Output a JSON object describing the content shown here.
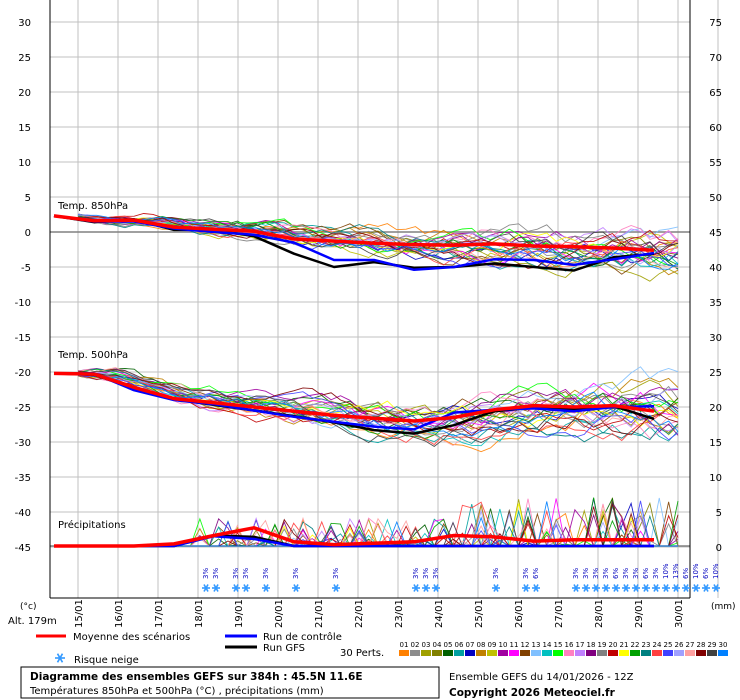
{
  "chart_data": {
    "type": "line",
    "x_dates": [
      "15/01",
      "16/01",
      "17/01",
      "18/01",
      "19/01",
      "20/01",
      "21/01",
      "22/01",
      "23/01",
      "24/01",
      "25/01",
      "26/01",
      "27/01",
      "28/01",
      "29/01",
      "30/01"
    ],
    "left_axis": {
      "unit": "(°c)",
      "ticks": [
        30,
        25,
        20,
        15,
        10,
        5,
        0,
        -5,
        -10,
        -15,
        -20,
        -25,
        -30,
        -35,
        -40,
        -45
      ]
    },
    "right_axis": {
      "unit": "(mm)",
      "ticks": [
        75,
        70,
        65,
        60,
        55,
        50,
        45,
        40,
        35,
        30,
        25,
        20,
        15,
        10,
        5,
        0
      ]
    },
    "panel_labels": {
      "t850": "Temp. 850hPa",
      "t500": "Temp. 500hPa",
      "precip": "Précipitations"
    },
    "altitude": "Alt. 179m",
    "series": [
      {
        "name": "Moyenne des scénarios",
        "color": "#ff0000",
        "t850": [
          2.3,
          1.6,
          1.7,
          0.7,
          0.4,
          0.1,
          -1.0,
          -1.3,
          -1.6,
          -1.8,
          -1.9,
          -1.7,
          -2.0,
          -2.1,
          -2.3,
          -2.6
        ],
        "t500": [
          -20.2,
          -20.3,
          -22.2,
          -23.8,
          -24.4,
          -25.0,
          -25.6,
          -26.2,
          -26.6,
          -27.0,
          -26.5,
          -25.4,
          -24.8,
          -25.0,
          -24.8,
          -25.6
        ],
        "precip": [
          0,
          0,
          0,
          0.3,
          1.5,
          2.6,
          0.6,
          0.2,
          0.4,
          0.6,
          1.5,
          1.3,
          0.7,
          0.9,
          0.9,
          0.9
        ]
      },
      {
        "name": "Run de contrôle",
        "color": "#0000ff",
        "t850": [
          2.3,
          1.5,
          1.5,
          0.5,
          0.0,
          -0.4,
          -1.5,
          -4.0,
          -4.0,
          -5.4,
          -5.0,
          -3.9,
          -4.0,
          -4.7,
          -3.9,
          -3.0
        ],
        "t500": [
          -20.2,
          -20.2,
          -22.6,
          -24.0,
          -24.6,
          -25.5,
          -26.4,
          -27.1,
          -27.8,
          -28.2,
          -25.8,
          -25.4,
          -25.2,
          -25.6,
          -25.0,
          -24.9
        ],
        "precip": [
          0,
          0,
          0,
          0,
          1.4,
          1.0,
          0,
          0,
          0,
          0,
          0,
          0,
          0,
          0,
          0,
          0
        ]
      },
      {
        "name": "Run GFS",
        "color": "#000000",
        "t850": [
          2.3,
          1.4,
          1.8,
          0.3,
          0.3,
          -0.6,
          -3.1,
          -5.0,
          -4.3,
          -5.1,
          -5.0,
          -4.5,
          -5.0,
          -5.5,
          -3.6,
          -3.1
        ],
        "t500": [
          -20.2,
          -20.4,
          -22.3,
          -23.9,
          -24.7,
          -25.5,
          -26.3,
          -27.2,
          -28.3,
          -28.8,
          -27.6,
          -25.6,
          -25.1,
          -25.4,
          -24.9,
          -26.7
        ],
        "precip": [
          0,
          0,
          0,
          0,
          1.5,
          1.3,
          0,
          0,
          0,
          0,
          0,
          0,
          0,
          0,
          0,
          0
        ]
      }
    ],
    "snow_risk": [
      {
        "day": 3.9,
        "pcts": [
          "3%",
          "3%"
        ]
      },
      {
        "day": 4.65,
        "pcts": [
          "3%",
          "3%"
        ]
      },
      {
        "day": 5.4,
        "pcts": [
          "3%"
        ]
      },
      {
        "day": 6.15,
        "pcts": [
          "3%"
        ]
      },
      {
        "day": 7.15,
        "pcts": [
          "3%"
        ]
      },
      {
        "day": 9.15,
        "pcts": [
          "3%",
          "3%",
          "3%"
        ]
      },
      {
        "day": 11.15,
        "pcts": [
          "3%"
        ]
      },
      {
        "day": 11.9,
        "pcts": [
          "3%",
          "6%"
        ]
      },
      {
        "day": 13.15,
        "pcts": [
          "3%",
          "3%",
          "3%",
          "3%",
          "6%",
          "3%",
          "3%",
          "6%",
          "3%",
          "10%",
          "13%",
          "6%",
          "10%",
          "6%",
          "10%"
        ]
      }
    ],
    "perts_label": "30 Perts.",
    "perts_numbers": [
      "01",
      "02",
      "03",
      "04",
      "05",
      "06",
      "07",
      "08",
      "09",
      "10",
      "11",
      "12",
      "13",
      "14",
      "15",
      "16",
      "17",
      "18",
      "19",
      "20",
      "21",
      "22",
      "23",
      "24",
      "25",
      "26",
      "27",
      "28",
      "29",
      "30"
    ],
    "perts_colors": [
      "#ff8000",
      "#8c8c8c",
      "#a0a000",
      "#808000",
      "#006000",
      "#00a0a0",
      "#0000c0",
      "#c08000",
      "#c0c000",
      "#a000a0",
      "#ff00ff",
      "#804000",
      "#80c0ff",
      "#00c0c0",
      "#00ff00",
      "#ff80c0",
      "#c080ff",
      "#800080",
      "#808080",
      "#c00000",
      "#ffff00",
      "#00a000",
      "#008080",
      "#ff4040",
      "#4040ff",
      "#a0a0ff",
      "#ffa0a0",
      "#800000",
      "#404040",
      "#0080ff"
    ],
    "legend": {
      "mean": "Moyenne des scénarios",
      "control": "Run de contrôle",
      "gfs": "Run GFS",
      "snow": "Risque neige"
    },
    "footer": {
      "title": "Diagramme des ensembles GEFS sur 384h : 45.5N 11.6E",
      "subtitle": "Températures 850hPa et 500hPa (°C) , précipitations (mm)",
      "run": "Ensemble GEFS du 14/01/2026 - 12Z",
      "copyright": "Copyright 2026 Meteociel.fr"
    }
  }
}
